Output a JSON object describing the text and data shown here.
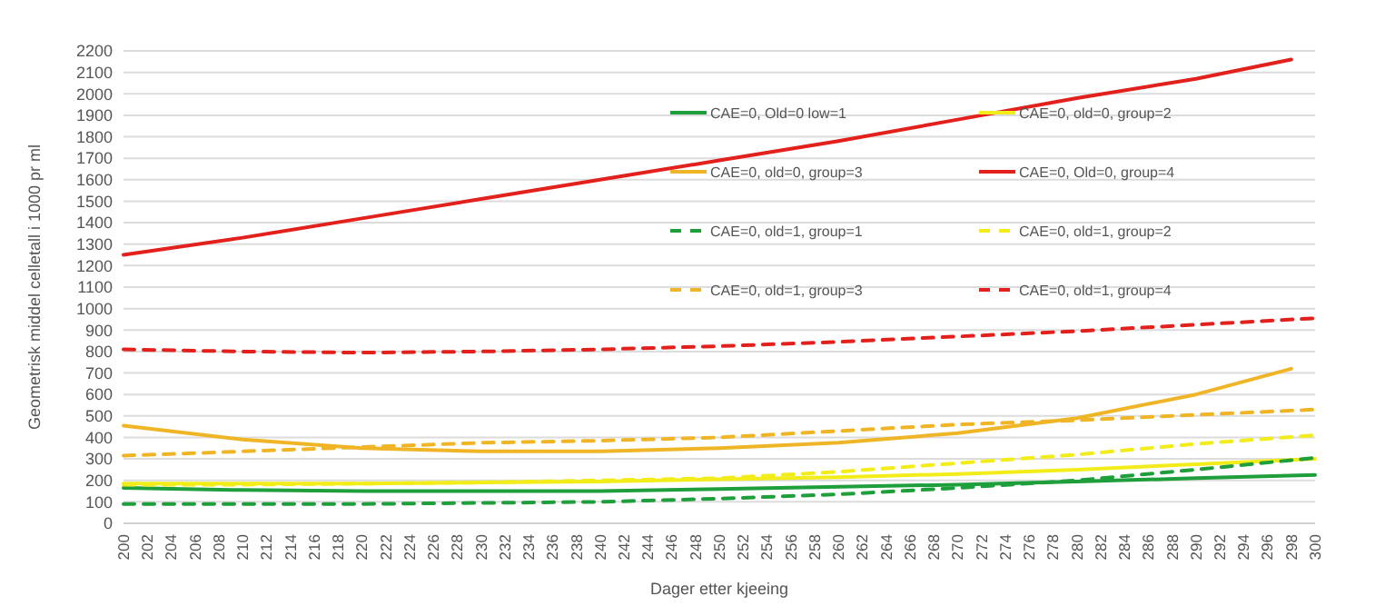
{
  "chart_data": {
    "type": "line",
    "xlabel": "Dager etter kjeeing",
    "ylabel": "Geometrisk middel celletall i 1000 pr ml",
    "xlim": [
      200,
      300
    ],
    "xticks": [
      200,
      202,
      204,
      206,
      208,
      210,
      212,
      214,
      216,
      218,
      220,
      222,
      224,
      226,
      228,
      230,
      232,
      234,
      236,
      238,
      240,
      242,
      244,
      246,
      248,
      250,
      252,
      254,
      256,
      258,
      260,
      262,
      264,
      266,
      268,
      270,
      272,
      274,
      276,
      278,
      280,
      282,
      284,
      286,
      288,
      290,
      292,
      294,
      296,
      298,
      300
    ],
    "ylim": [
      0,
      2200
    ],
    "yticks": [
      0,
      100,
      200,
      300,
      400,
      500,
      600,
      700,
      800,
      900,
      1000,
      1100,
      1200,
      1300,
      1400,
      1500,
      1600,
      1700,
      1800,
      1900,
      2000,
      2100,
      2200
    ],
    "grid": "y",
    "legend": "top right",
    "marker": "none",
    "series": [
      {
        "name": "CAE=0, Old=0 low=1",
        "color": "#1f9e3c",
        "line_style": "solid",
        "x": [
          200,
          210,
          220,
          230,
          240,
          250,
          260,
          270,
          280,
          290,
          300
        ],
        "values": [
          165,
          155,
          150,
          150,
          150,
          160,
          170,
          180,
          195,
          210,
          225
        ]
      },
      {
        "name": "CAE=0, old=0, group=2",
        "color": "#f2ec1a",
        "line_style": "solid",
        "x": [
          200,
          210,
          220,
          230,
          240,
          250,
          260,
          270,
          280,
          290,
          300
        ],
        "values": [
          185,
          185,
          185,
          190,
          195,
          205,
          215,
          230,
          250,
          275,
          300
        ]
      },
      {
        "name": "CAE=0, old=0, group=3",
        "color": "#efb526",
        "line_style": "solid",
        "x": [
          200,
          210,
          220,
          230,
          240,
          250,
          260,
          270,
          280,
          290,
          298
        ],
        "values": [
          455,
          390,
          350,
          335,
          335,
          350,
          375,
          420,
          490,
          600,
          720
        ]
      },
      {
        "name": "CAE=0, Old=0, group=4",
        "color": "#e2201c",
        "line_style": "solid",
        "x": [
          200,
          210,
          220,
          230,
          240,
          250,
          260,
          270,
          280,
          290,
          298
        ],
        "values": [
          1250,
          1330,
          1420,
          1510,
          1600,
          1690,
          1780,
          1880,
          1980,
          2070,
          2160
        ]
      },
      {
        "name": "CAE=0, old=1, group=1",
        "color": "#1f9e3c",
        "line_style": "dashed",
        "x": [
          200,
          210,
          220,
          230,
          240,
          250,
          260,
          270,
          280,
          290,
          300
        ],
        "values": [
          90,
          90,
          90,
          95,
          100,
          115,
          135,
          165,
          200,
          250,
          305
        ]
      },
      {
        "name": "CAE=0, old=1, group=2",
        "color": "#f2ec1a",
        "line_style": "dashed",
        "x": [
          200,
          210,
          220,
          230,
          240,
          250,
          260,
          270,
          280,
          290,
          300
        ],
        "values": [
          180,
          180,
          185,
          190,
          200,
          210,
          240,
          280,
          320,
          370,
          410
        ]
      },
      {
        "name": "CAE=0, old=1, group=3",
        "color": "#efb526",
        "line_style": "dashed",
        "x": [
          200,
          210,
          220,
          230,
          240,
          250,
          260,
          270,
          280,
          290,
          300
        ],
        "values": [
          315,
          335,
          355,
          375,
          385,
          400,
          430,
          460,
          480,
          505,
          530
        ]
      },
      {
        "name": "CAE=0, old=1, group=4",
        "color": "#e2201c",
        "line_style": "dashed",
        "x": [
          200,
          210,
          220,
          230,
          240,
          250,
          260,
          270,
          280,
          290,
          300
        ],
        "values": [
          810,
          800,
          795,
          800,
          810,
          825,
          845,
          870,
          895,
          925,
          955
        ]
      }
    ]
  }
}
